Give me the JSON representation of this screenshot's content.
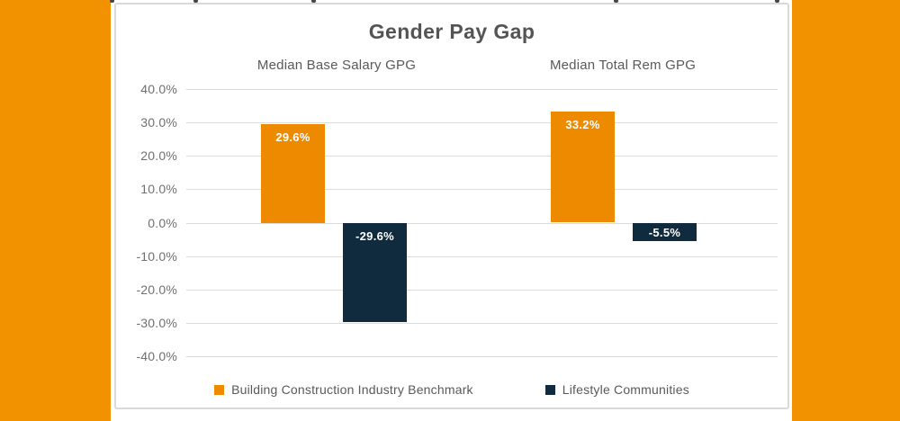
{
  "page": {
    "side_band_color": "#F39200",
    "card_background": "#FFFFFF",
    "card_border_color": "#D9D9D9",
    "text_color": "#595959"
  },
  "chart_data": {
    "type": "bar",
    "title": "Gender Pay Gap",
    "title_color": "#545454",
    "categories": [
      "Median Base Salary GPG",
      "Median Total Rem GPG"
    ],
    "series": [
      {
        "name": "Building Construction Industry Benchmark",
        "color": "#EE8A00",
        "values": [
          29.6,
          33.2
        ],
        "data_labels": [
          "29.6%",
          "33.2%"
        ]
      },
      {
        "name": "Lifestyle Communities",
        "color": "#0F2B3D",
        "values": [
          -29.6,
          -5.5
        ],
        "data_labels": [
          "-29.6%",
          "-5.5%"
        ]
      }
    ],
    "y_axis": {
      "min": -40,
      "max": 40,
      "step": 10,
      "tick_labels": [
        "40.0%",
        "30.0%",
        "20.0%",
        "10.0%",
        "0.0%",
        "-10.0%",
        "-20.0%",
        "-30.0%",
        "-40.0%"
      ],
      "tick_color": "#6F6F6F"
    },
    "gridlines": true,
    "gridline_color": "#DCDCDC",
    "legend_position": "bottom",
    "bar_label_color": "#FFFFFF"
  }
}
